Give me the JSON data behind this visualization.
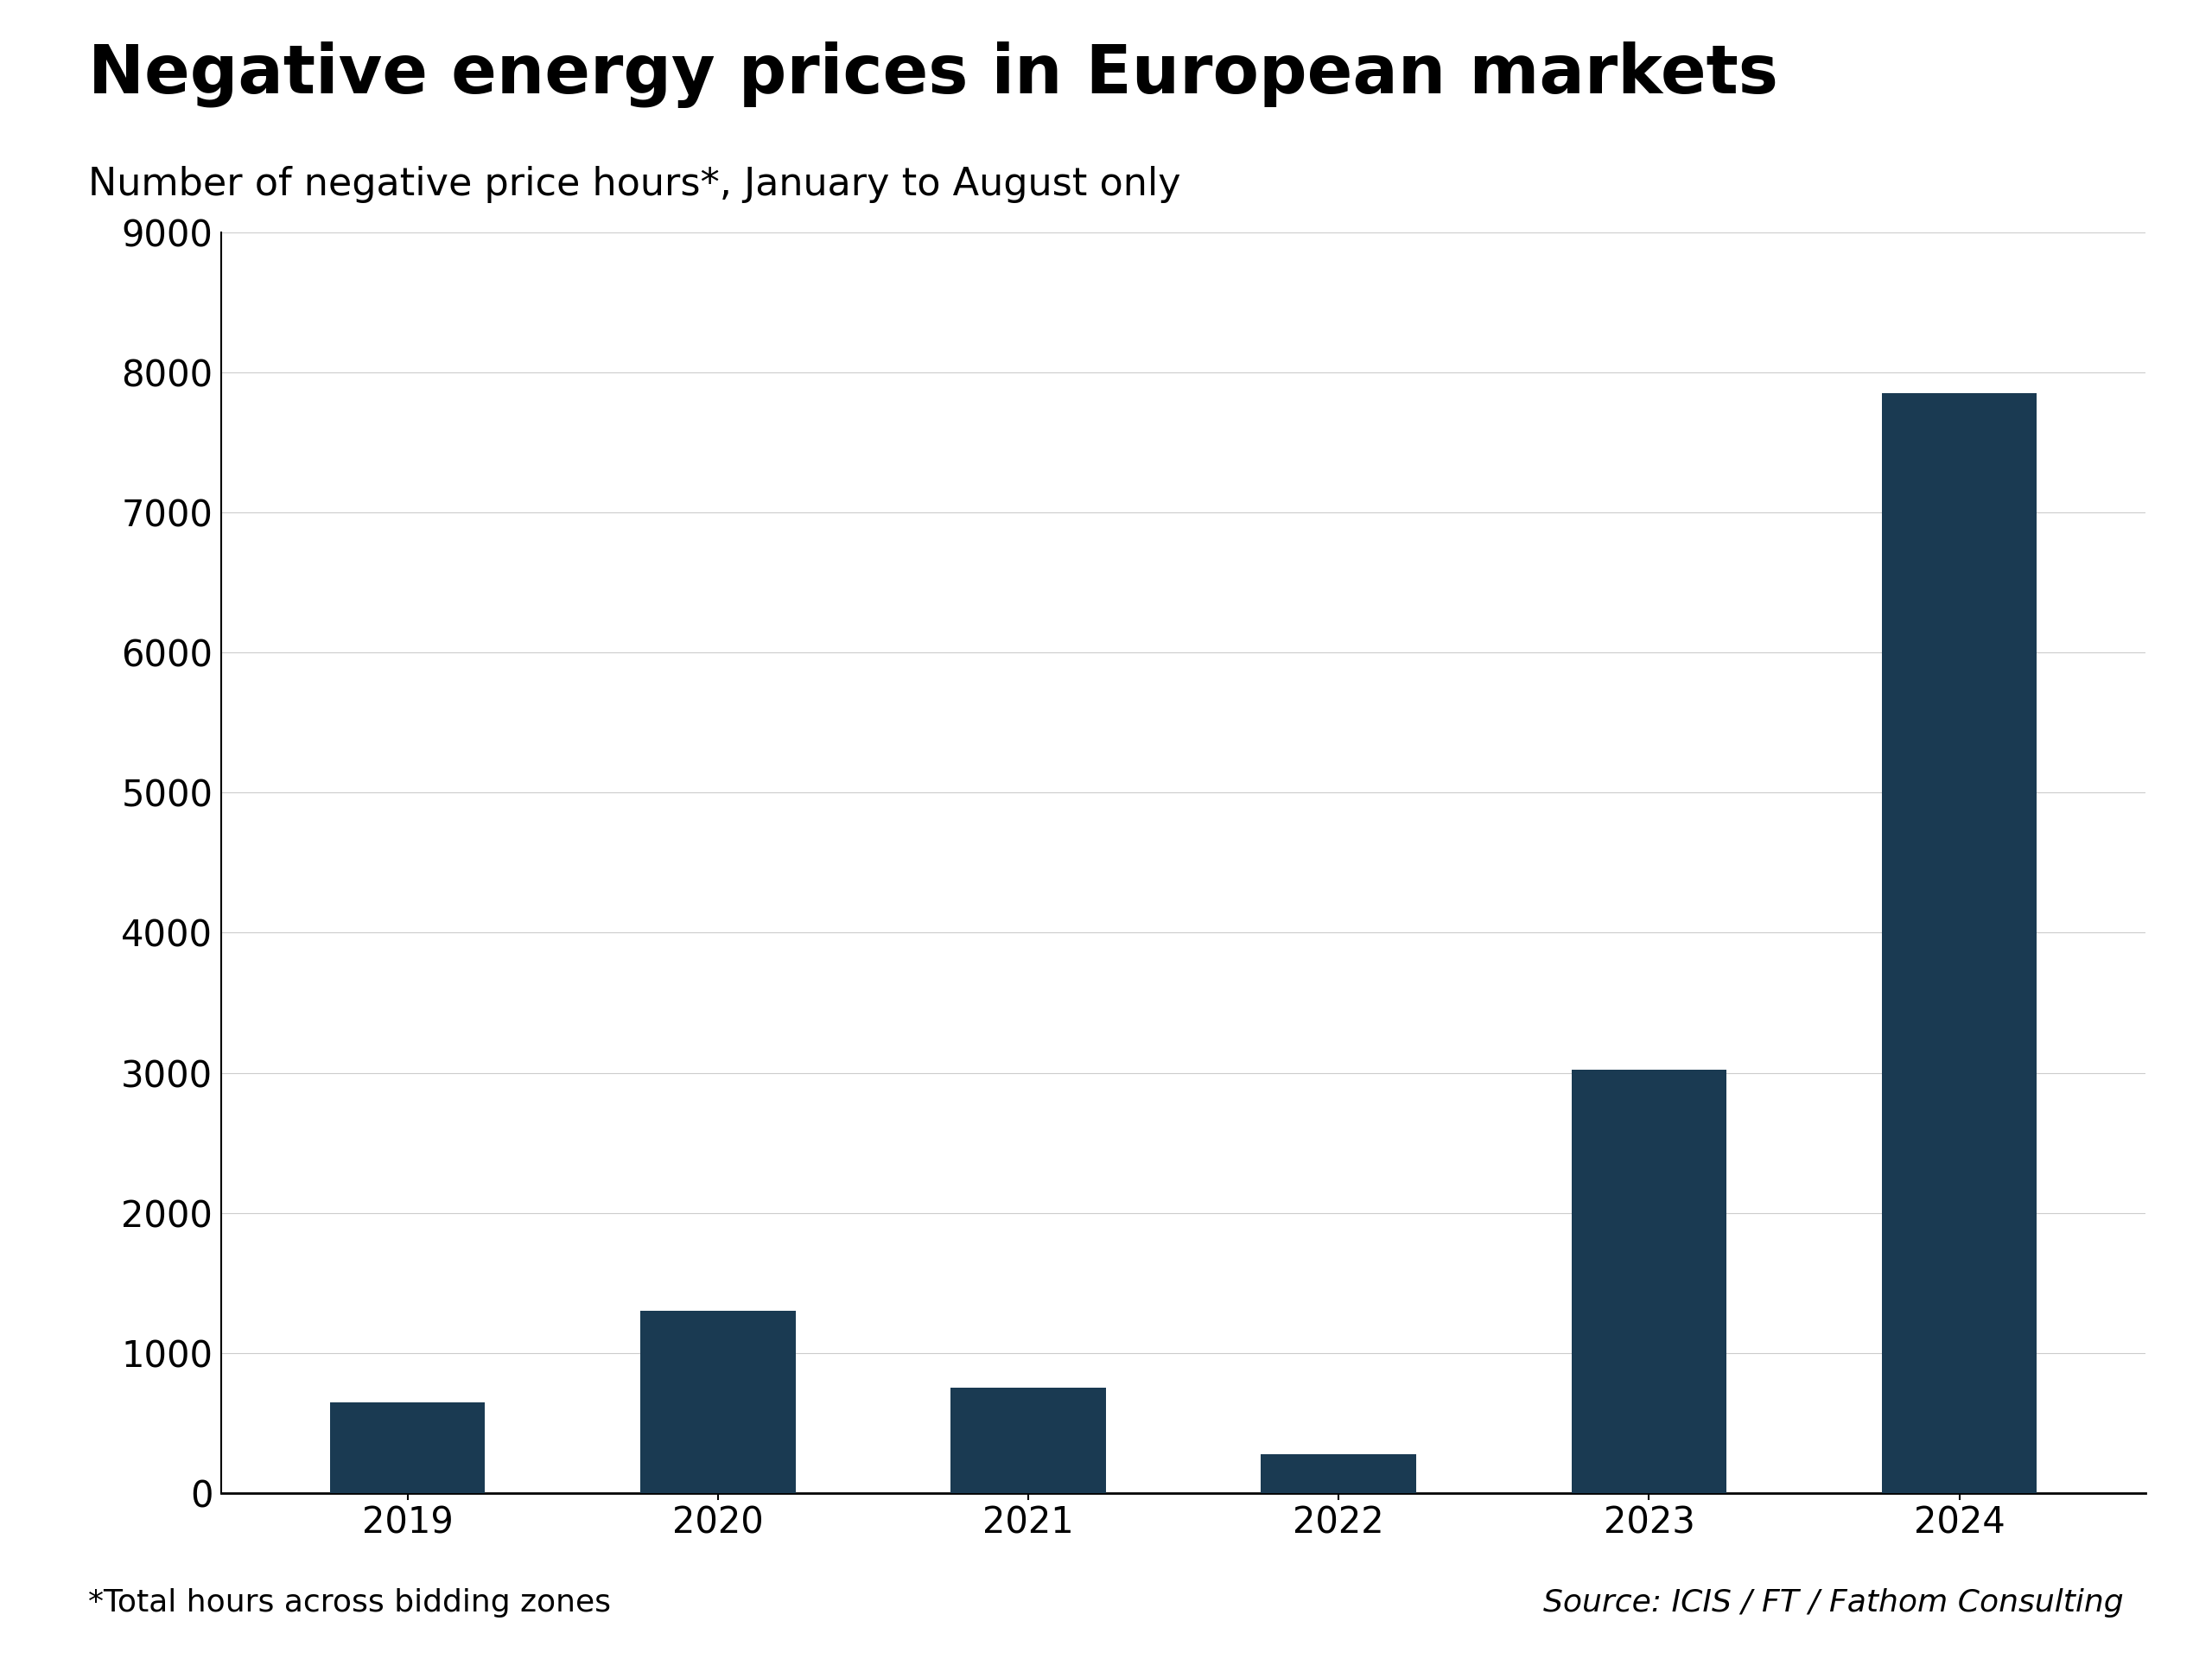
{
  "title": "Negative energy prices in European markets",
  "subtitle": "Number of negative price hours*, January to August only",
  "categories": [
    "2019",
    "2020",
    "2021",
    "2022",
    "2023",
    "2024"
  ],
  "values": [
    650,
    1300,
    750,
    275,
    3020,
    7850
  ],
  "bar_color": "#1a3a52",
  "ylim": [
    0,
    9000
  ],
  "yticks": [
    0,
    1000,
    2000,
    3000,
    4000,
    5000,
    6000,
    7000,
    8000,
    9000
  ],
  "footer_left": "*Total hours across bidding zones",
  "footer_right": "Source: ICIS / FT / Fathom Consulting",
  "title_fontsize": 56,
  "subtitle_fontsize": 32,
  "tick_fontsize": 30,
  "footer_fontsize": 26,
  "background_color": "#ffffff",
  "grid_color": "#cccccc",
  "bar_width": 0.5
}
